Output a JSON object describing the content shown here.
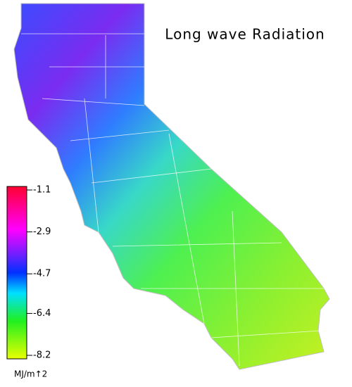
{
  "title": "Long wave Radiation",
  "colorbar": {
    "lim": [
      -1.1,
      -8.2
    ],
    "ticks": [
      -1.1,
      -2.9,
      -4.7,
      -6.4,
      -8.2
    ],
    "unit": "MJ/m↑2"
  }
}
